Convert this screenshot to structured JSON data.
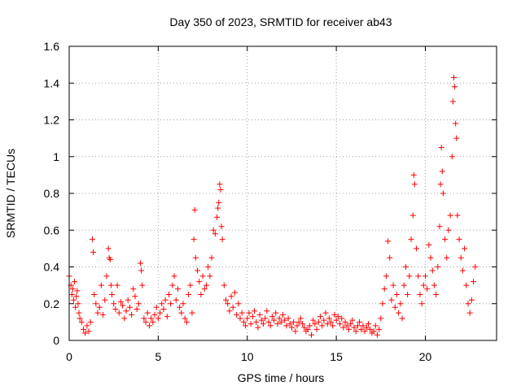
{
  "chart_data": {
    "type": "scatter",
    "title": "Day 350 of 2023, SRMTID for receiver ab43",
    "xlabel": "GPS time / hours",
    "ylabel": "SRMTID / TECUs",
    "xlim": [
      0,
      24
    ],
    "ylim": [
      0,
      1.6
    ],
    "xticks": [
      0,
      5,
      10,
      15,
      20
    ],
    "xtick_labels": [
      "0",
      "5",
      "10",
      "15",
      "20"
    ],
    "yticks": [
      0,
      0.2,
      0.4,
      0.6,
      0.8,
      1,
      1.2,
      1.4,
      1.6
    ],
    "ytick_labels": [
      "0",
      "0.2",
      "0.4",
      "0.6",
      "0.8",
      "1",
      "1.2",
      "1.4",
      "1.6"
    ],
    "grid": true,
    "marker": "+",
    "color": "#ff0000",
    "series": [
      {
        "name": "SRMTID",
        "points": [
          [
            0.0,
            0.35
          ],
          [
            0.1,
            0.3
          ],
          [
            0.15,
            0.25
          ],
          [
            0.2,
            0.28
          ],
          [
            0.25,
            0.22
          ],
          [
            0.3,
            0.32
          ],
          [
            0.35,
            0.18
          ],
          [
            0.4,
            0.24
          ],
          [
            0.45,
            0.27
          ],
          [
            0.5,
            0.2
          ],
          [
            0.55,
            0.15
          ],
          [
            0.6,
            0.12
          ],
          [
            0.7,
            0.1
          ],
          [
            0.8,
            0.06
          ],
          [
            0.9,
            0.04
          ],
          [
            1.0,
            0.08
          ],
          [
            1.1,
            0.05
          ],
          [
            1.2,
            0.1
          ],
          [
            1.3,
            0.55
          ],
          [
            1.35,
            0.48
          ],
          [
            1.4,
            0.25
          ],
          [
            1.5,
            0.2
          ],
          [
            1.6,
            0.15
          ],
          [
            1.7,
            0.18
          ],
          [
            1.8,
            0.3
          ],
          [
            1.9,
            0.14
          ],
          [
            2.0,
            0.22
          ],
          [
            2.1,
            0.35
          ],
          [
            2.2,
            0.5
          ],
          [
            2.25,
            0.45
          ],
          [
            2.3,
            0.44
          ],
          [
            2.35,
            0.3
          ],
          [
            2.4,
            0.25
          ],
          [
            2.5,
            0.2
          ],
          [
            2.6,
            0.17
          ],
          [
            2.7,
            0.3
          ],
          [
            2.8,
            0.15
          ],
          [
            2.9,
            0.21
          ],
          [
            3.0,
            0.19
          ],
          [
            3.1,
            0.12
          ],
          [
            3.2,
            0.16
          ],
          [
            3.3,
            0.22
          ],
          [
            3.4,
            0.18
          ],
          [
            3.5,
            0.14
          ],
          [
            3.6,
            0.28
          ],
          [
            3.7,
            0.24
          ],
          [
            3.8,
            0.17
          ],
          [
            3.9,
            0.2
          ],
          [
            4.0,
            0.42
          ],
          [
            4.05,
            0.38
          ],
          [
            4.1,
            0.3
          ],
          [
            4.2,
            0.12
          ],
          [
            4.3,
            0.1
          ],
          [
            4.4,
            0.15
          ],
          [
            4.5,
            0.08
          ],
          [
            4.6,
            0.12
          ],
          [
            4.7,
            0.1
          ],
          [
            4.8,
            0.14
          ],
          [
            4.9,
            0.18
          ],
          [
            5.0,
            0.12
          ],
          [
            5.1,
            0.15
          ],
          [
            5.2,
            0.2
          ],
          [
            5.3,
            0.17
          ],
          [
            5.4,
            0.22
          ],
          [
            5.5,
            0.13
          ],
          [
            5.6,
            0.25
          ],
          [
            5.7,
            0.2
          ],
          [
            5.8,
            0.3
          ],
          [
            5.9,
            0.35
          ],
          [
            6.0,
            0.22
          ],
          [
            6.1,
            0.28
          ],
          [
            6.2,
            0.18
          ],
          [
            6.3,
            0.15
          ],
          [
            6.4,
            0.2
          ],
          [
            6.5,
            0.12
          ],
          [
            6.6,
            0.1
          ],
          [
            6.7,
            0.25
          ],
          [
            6.8,
            0.3
          ],
          [
            6.9,
            0.15
          ],
          [
            7.0,
            0.55
          ],
          [
            7.05,
            0.71
          ],
          [
            7.1,
            0.45
          ],
          [
            7.2,
            0.38
          ],
          [
            7.3,
            0.32
          ],
          [
            7.4,
            0.25
          ],
          [
            7.5,
            0.35
          ],
          [
            7.6,
            0.28
          ],
          [
            7.7,
            0.3
          ],
          [
            7.8,
            0.4
          ],
          [
            7.9,
            0.35
          ],
          [
            8.0,
            0.45
          ],
          [
            8.1,
            0.6
          ],
          [
            8.2,
            0.58
          ],
          [
            8.3,
            0.67
          ],
          [
            8.35,
            0.72
          ],
          [
            8.4,
            0.75
          ],
          [
            8.45,
            0.85
          ],
          [
            8.5,
            0.82
          ],
          [
            8.55,
            0.62
          ],
          [
            8.6,
            0.55
          ],
          [
            8.7,
            0.3
          ],
          [
            8.8,
            0.22
          ],
          [
            8.9,
            0.2
          ],
          [
            9.0,
            0.16
          ],
          [
            9.1,
            0.24
          ],
          [
            9.2,
            0.18
          ],
          [
            9.3,
            0.26
          ],
          [
            9.4,
            0.14
          ],
          [
            9.5,
            0.2
          ],
          [
            9.6,
            0.12
          ],
          [
            9.7,
            0.15
          ],
          [
            9.8,
            0.1
          ],
          [
            9.9,
            0.08
          ],
          [
            10.0,
            0.12
          ],
          [
            10.1,
            0.15
          ],
          [
            10.2,
            0.09
          ],
          [
            10.3,
            0.13
          ],
          [
            10.4,
            0.16
          ],
          [
            10.5,
            0.1
          ],
          [
            10.6,
            0.07
          ],
          [
            10.7,
            0.14
          ],
          [
            10.8,
            0.11
          ],
          [
            10.9,
            0.09
          ],
          [
            11.0,
            0.12
          ],
          [
            11.1,
            0.16
          ],
          [
            11.2,
            0.1
          ],
          [
            11.3,
            0.08
          ],
          [
            11.4,
            0.13
          ],
          [
            11.5,
            0.11
          ],
          [
            11.6,
            0.15
          ],
          [
            11.7,
            0.09
          ],
          [
            11.8,
            0.12
          ],
          [
            11.9,
            0.1
          ],
          [
            12.0,
            0.14
          ],
          [
            12.1,
            0.11
          ],
          [
            12.2,
            0.08
          ],
          [
            12.3,
            0.12
          ],
          [
            12.4,
            0.09
          ],
          [
            12.5,
            0.07
          ],
          [
            12.6,
            0.1
          ],
          [
            12.7,
            0.05
          ],
          [
            12.8,
            0.08
          ],
          [
            12.9,
            0.1
          ],
          [
            13.0,
            0.12
          ],
          [
            13.1,
            0.09
          ],
          [
            13.2,
            0.07
          ],
          [
            13.3,
            0.05
          ],
          [
            13.4,
            0.06
          ],
          [
            13.5,
            0.08
          ],
          [
            13.6,
            0.03
          ],
          [
            13.7,
            0.11
          ],
          [
            13.8,
            0.09
          ],
          [
            13.9,
            0.06
          ],
          [
            14.0,
            0.1
          ],
          [
            14.1,
            0.13
          ],
          [
            14.2,
            0.08
          ],
          [
            14.3,
            0.11
          ],
          [
            14.4,
            0.15
          ],
          [
            14.5,
            0.09
          ],
          [
            14.6,
            0.12
          ],
          [
            14.7,
            0.1
          ],
          [
            14.8,
            0.08
          ],
          [
            14.9,
            0.14
          ],
          [
            15.0,
            0.11
          ],
          [
            15.1,
            0.13
          ],
          [
            15.2,
            0.09
          ],
          [
            15.3,
            0.12
          ],
          [
            15.4,
            0.07
          ],
          [
            15.5,
            0.1
          ],
          [
            15.6,
            0.08
          ],
          [
            15.7,
            0.06
          ],
          [
            15.8,
            0.09
          ],
          [
            15.9,
            0.11
          ],
          [
            16.0,
            0.07
          ],
          [
            16.1,
            0.05
          ],
          [
            16.2,
            0.08
          ],
          [
            16.3,
            0.1
          ],
          [
            16.4,
            0.06
          ],
          [
            16.5,
            0.08
          ],
          [
            16.6,
            0.05
          ],
          [
            16.7,
            0.07
          ],
          [
            16.8,
            0.09
          ],
          [
            16.9,
            0.06
          ],
          [
            17.0,
            0.04
          ],
          [
            17.1,
            0.05
          ],
          [
            17.2,
            0.08
          ],
          [
            17.3,
            0.03
          ],
          [
            17.4,
            0.06
          ],
          [
            17.5,
            0.12
          ],
          [
            17.6,
            0.2
          ],
          [
            17.7,
            0.28
          ],
          [
            17.8,
            0.35
          ],
          [
            17.9,
            0.54
          ],
          [
            18.0,
            0.45
          ],
          [
            18.1,
            0.22
          ],
          [
            18.2,
            0.3
          ],
          [
            18.3,
            0.18
          ],
          [
            18.4,
            0.25
          ],
          [
            18.5,
            0.15
          ],
          [
            18.6,
            0.2
          ],
          [
            18.7,
            0.12
          ],
          [
            18.8,
            0.3
          ],
          [
            18.9,
            0.4
          ],
          [
            19.0,
            0.25
          ],
          [
            19.1,
            0.35
          ],
          [
            19.2,
            0.55
          ],
          [
            19.3,
            0.68
          ],
          [
            19.35,
            0.9
          ],
          [
            19.4,
            0.85
          ],
          [
            19.5,
            0.5
          ],
          [
            19.6,
            0.35
          ],
          [
            19.7,
            0.25
          ],
          [
            19.8,
            0.2
          ],
          [
            19.9,
            0.3
          ],
          [
            20.0,
            0.35
          ],
          [
            20.1,
            0.28
          ],
          [
            20.2,
            0.52
          ],
          [
            20.3,
            0.45
          ],
          [
            20.4,
            0.38
          ],
          [
            20.5,
            0.3
          ],
          [
            20.6,
            0.25
          ],
          [
            20.7,
            0.4
          ],
          [
            20.8,
            0.62
          ],
          [
            20.85,
            0.85
          ],
          [
            20.9,
            1.05
          ],
          [
            20.95,
            0.92
          ],
          [
            21.0,
            0.8
          ],
          [
            21.1,
            0.55
          ],
          [
            21.2,
            0.45
          ],
          [
            21.3,
            0.6
          ],
          [
            21.4,
            0.68
          ],
          [
            21.5,
            1.0
          ],
          [
            21.55,
            1.3
          ],
          [
            21.6,
            1.43
          ],
          [
            21.65,
            1.38
          ],
          [
            21.7,
            1.18
          ],
          [
            21.75,
            1.1
          ],
          [
            21.8,
            0.68
          ],
          [
            21.9,
            0.55
          ],
          [
            22.0,
            0.45
          ],
          [
            22.1,
            0.38
          ],
          [
            22.2,
            0.5
          ],
          [
            22.3,
            0.3
          ],
          [
            22.4,
            0.2
          ],
          [
            22.5,
            0.15
          ],
          [
            22.6,
            0.22
          ],
          [
            22.7,
            0.32
          ],
          [
            22.8,
            0.4
          ]
        ]
      }
    ]
  }
}
